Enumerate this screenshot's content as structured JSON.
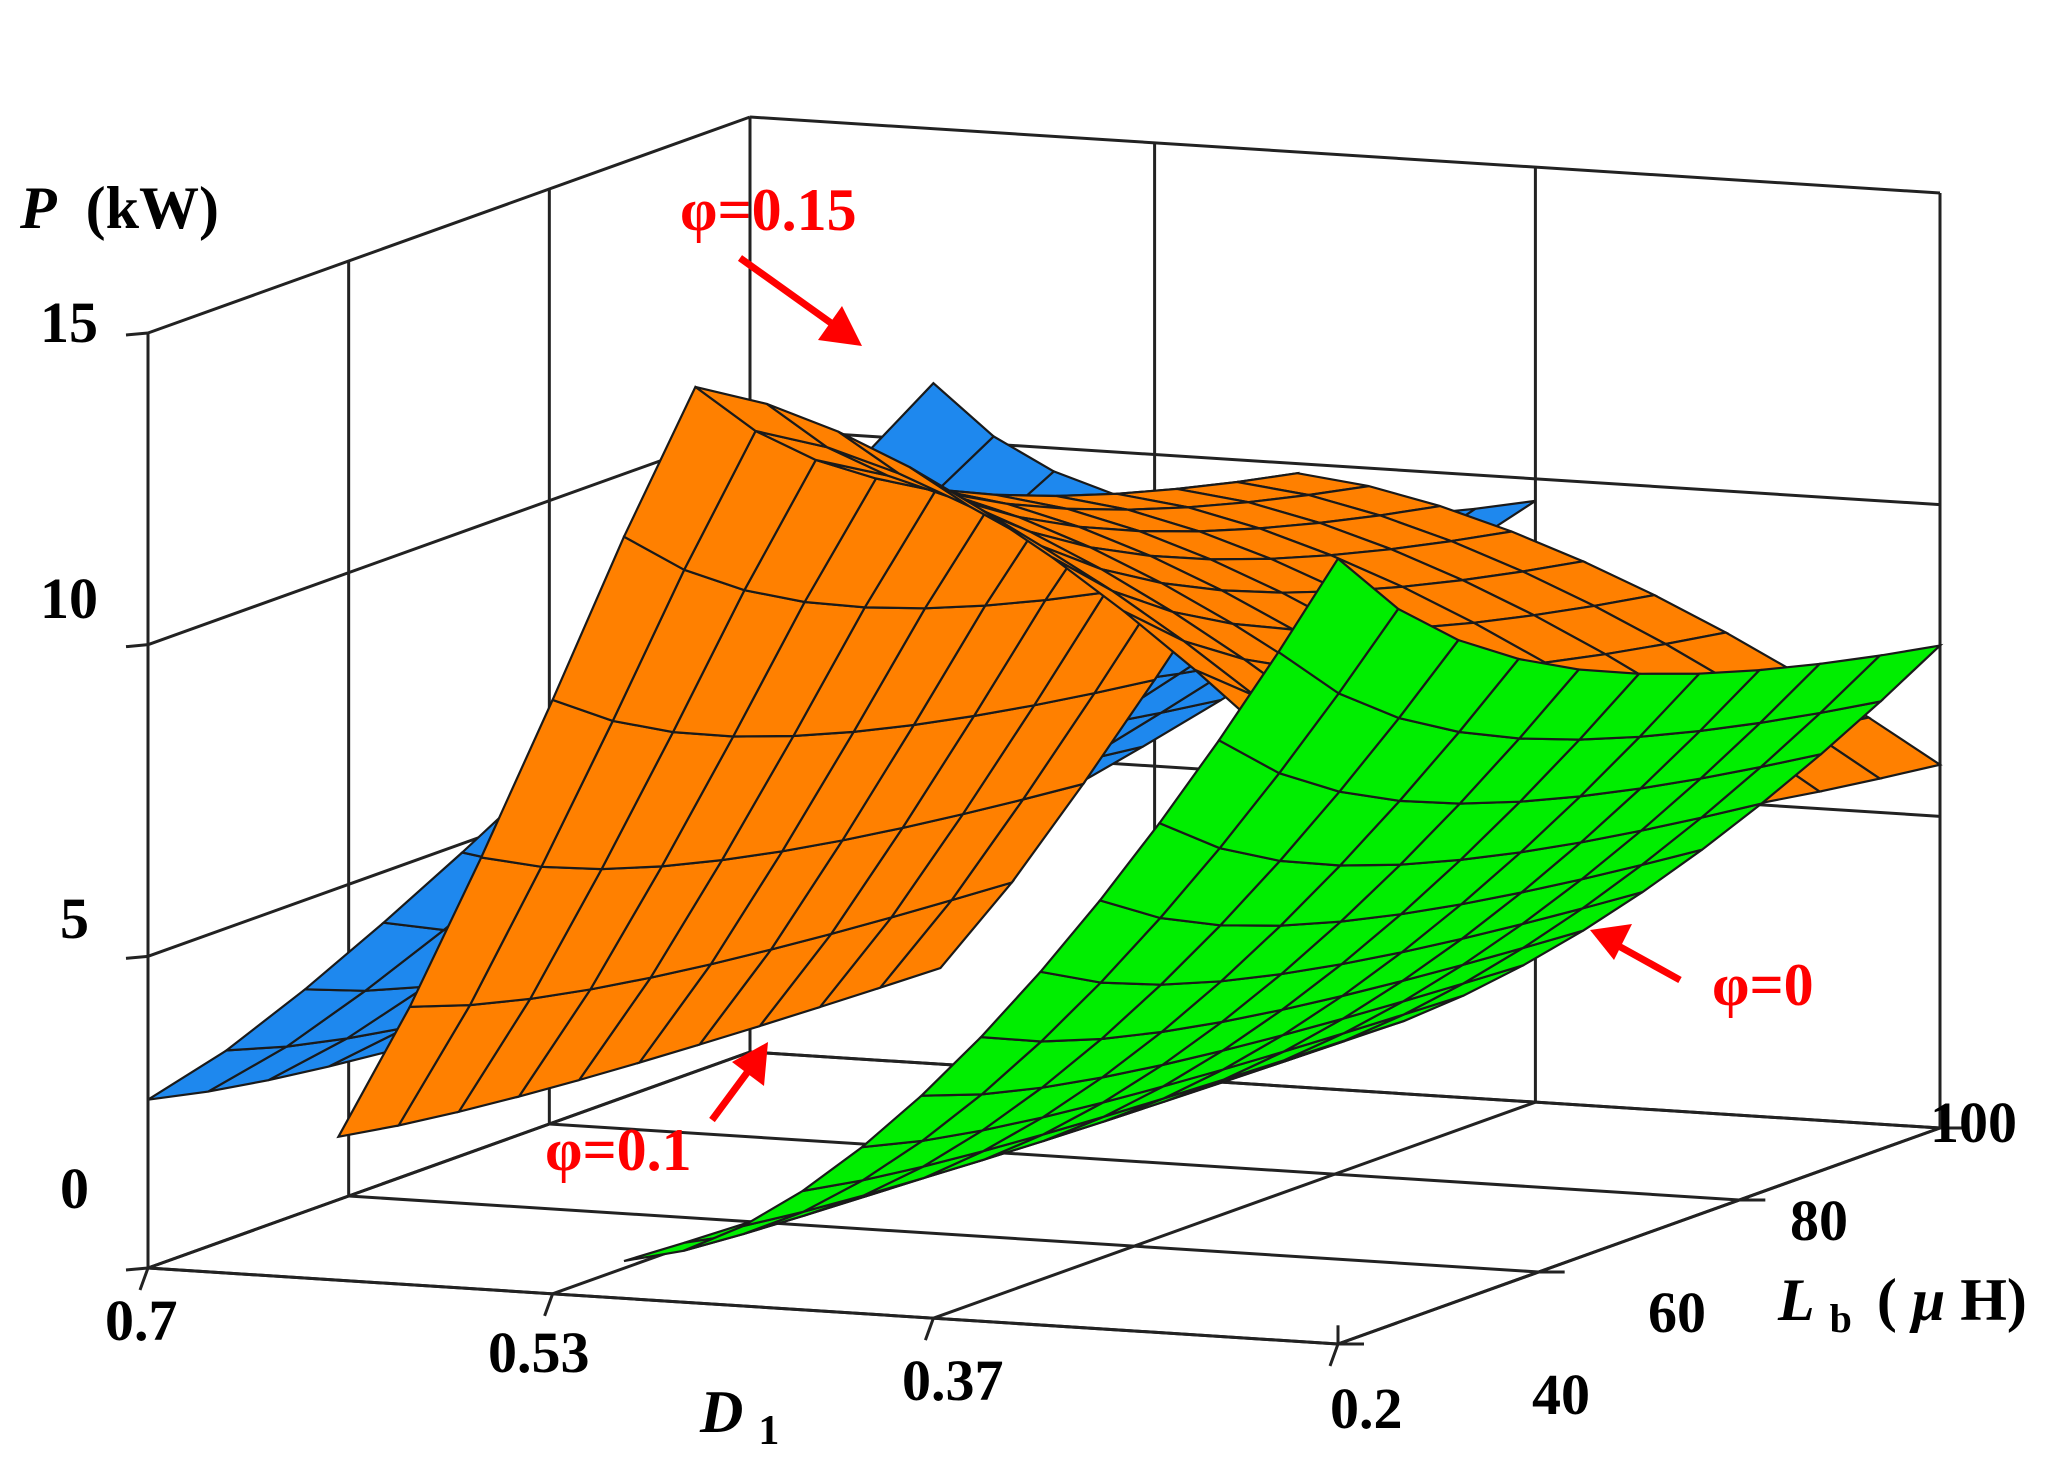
{
  "chart_data": {
    "type": "surface",
    "zlabel": {
      "symbol": "P",
      "unit": "(kW)"
    },
    "xlabel": {
      "symbol": "D",
      "subscript": "1"
    },
    "ylabel": {
      "symbol": "L",
      "subscript": "b",
      "unit_prefix": "(",
      "unit_mu": "μ",
      "unit_rest": "H)"
    },
    "x_ticks": [
      "0.7",
      "0.53",
      "0.37",
      "0.2"
    ],
    "y_ticks": [
      "40",
      "60",
      "80",
      "100"
    ],
    "z_ticks": [
      "0",
      "5",
      "10",
      "15"
    ],
    "xlim": [
      0.7,
      0.2
    ],
    "ylim": [
      40,
      100
    ],
    "zlim": [
      0,
      15
    ],
    "series": [
      {
        "name": "φ=0.15",
        "color": "#1e88ee",
        "d1_range": [
          0.7,
          0.37
        ],
        "p_peak": 15,
        "p_min": 3.0,
        "model": "peaks at D1=0.37, Lb=40"
      },
      {
        "name": "φ=0.1",
        "color": "#ff8000",
        "d1_range": [
          0.62,
          0.2
        ],
        "p_peak": 14.8,
        "p_min": 2.5,
        "model": "peaks near D1=0.33, Lb=40"
      },
      {
        "name": "φ=0",
        "color": "#00ee00",
        "d1_range": [
          0.5,
          0.2
        ],
        "p_peak": 9.5,
        "p_min": 1.0,
        "model": "peaks at D1=0.2, Lb=40"
      }
    ],
    "annotations": [
      {
        "text": "φ=0.15",
        "color": "#ff0000"
      },
      {
        "text": "φ=0.1",
        "color": "#ff0000"
      },
      {
        "text": "φ=0",
        "color": "#ff0000"
      }
    ]
  }
}
